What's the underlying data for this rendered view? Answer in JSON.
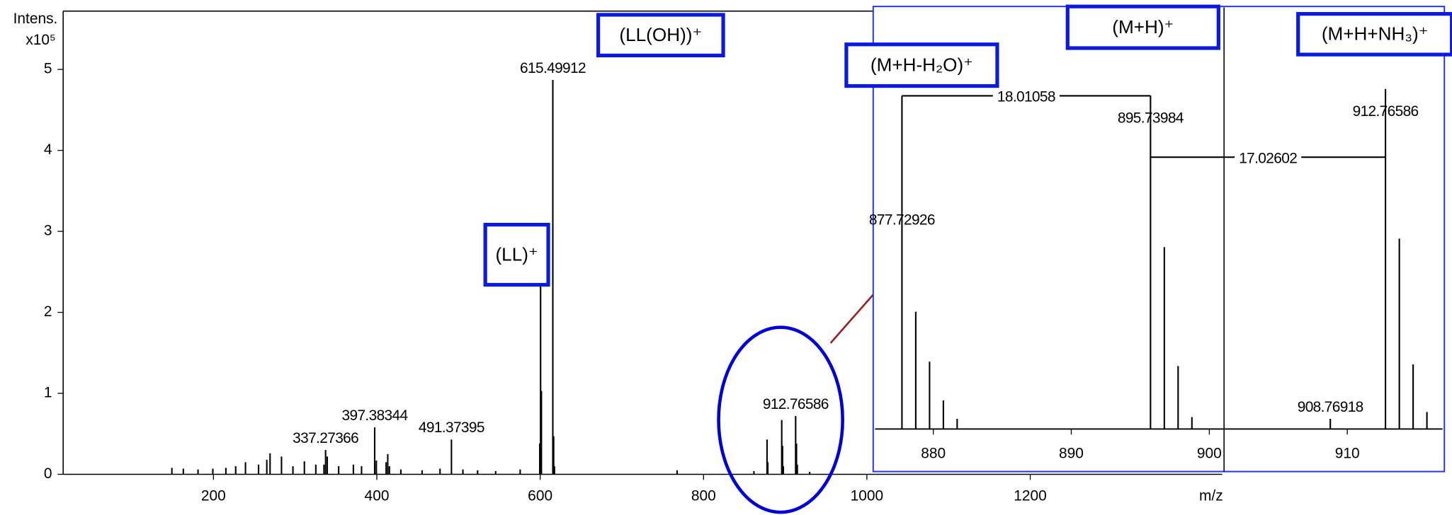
{
  "chart_data": [
    {
      "type": "stem",
      "y_label_top": "Intens.",
      "y_label_unit": "x10⁵",
      "x_label": "m/z",
      "xlim": [
        16,
        1435
      ],
      "ylim": [
        0,
        5.72
      ],
      "xticks": [
        200,
        400,
        600,
        800,
        1000,
        1200
      ],
      "yticks": [
        0,
        1,
        2,
        3,
        4,
        5
      ],
      "color": "#000000",
      "labeled_peaks": {
        "x": [
          337.27366,
          397.38344,
          491.37395,
          615.49912,
          912.76586
        ],
        "values": [
          0.3,
          0.58,
          0.43,
          4.87,
          0.72
        ]
      },
      "peaks": {
        "x": [
          600.5,
          601.5,
          599.5,
          616.5,
          617.5,
          877.73,
          878.7,
          895.74,
          896.74,
          897.7,
          913.77,
          914.8,
          399.4,
          411.4,
          413.4,
          415.4,
          339.3,
          335.3,
          283.3,
          265.3,
          269.3,
          255.2,
          239.2,
          311.3,
          325.3,
          353.3,
          371.3,
          381.3,
          149.1,
          163.1,
          181.1,
          199.2,
          215.2,
          227.2,
          297.3,
          429.4,
          455.4,
          477.4,
          505.4,
          523.4,
          545.5,
          575.5,
          767.6,
          861.7,
          930
        ],
        "values": [
          2.4,
          1.03,
          0.38,
          0.47,
          0.1,
          0.43,
          0.15,
          0.67,
          0.35,
          0.1,
          0.38,
          0.12,
          0.17,
          0.15,
          0.25,
          0.1,
          0.22,
          0.12,
          0.22,
          0.18,
          0.26,
          0.12,
          0.15,
          0.16,
          0.12,
          0.1,
          0.12,
          0.1,
          0.08,
          0.07,
          0.06,
          0.07,
          0.08,
          0.1,
          0.1,
          0.06,
          0.05,
          0.07,
          0.06,
          0.05,
          0.04,
          0.06,
          0.05,
          0.04,
          0.03
        ]
      }
    },
    {
      "type": "stem",
      "xlim": [
        875.78,
        916.9
      ],
      "ylim": [
        0,
        124
      ],
      "xticks": [
        880,
        890,
        900,
        910
      ],
      "color": "#000000",
      "labeled_peaks": {
        "x": [
          877.72926,
          895.73984,
          908.76918,
          912.76586
        ],
        "values": [
          98,
          98,
          3,
          100
        ]
      },
      "peaks": {
        "x": [
          878.73,
          879.73,
          880.73,
          881.73,
          896.74,
          897.74,
          898.74,
          913.77,
          914.77,
          915.77
        ],
        "values": [
          34.5,
          19.8,
          8.4,
          3,
          53.5,
          18.5,
          3.5,
          56,
          19,
          5
        ]
      },
      "mass_differences": [
        18.01058,
        17.02602
      ]
    }
  ],
  "annotations": [
    "(LL(OH))⁺",
    "(LL)⁺",
    "(M+H-H₂O)⁺",
    "(M+H)⁺",
    "(M+H+NH₃)⁺"
  ]
}
